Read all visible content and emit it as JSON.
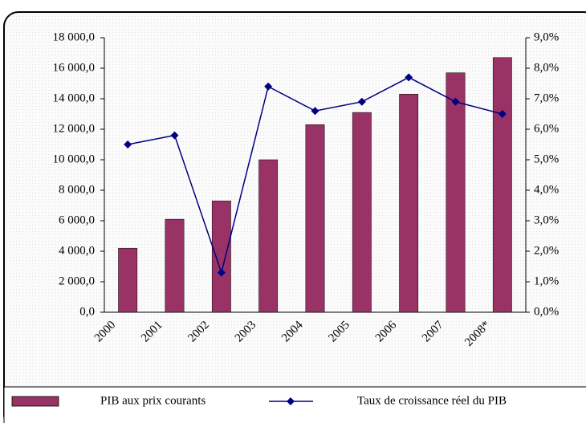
{
  "chart_data": {
    "type": "bar-line",
    "categories": [
      "2000",
      "2001",
      "2002",
      "2003",
      "2004",
      "2005",
      "2006",
      "2007",
      "2008*"
    ],
    "series": [
      {
        "name": "PIB aux prix courants",
        "type": "bar",
        "color": "#993366",
        "values": [
          4200,
          6100,
          7300,
          10000,
          12300,
          13100,
          14300,
          15700,
          16700
        ]
      },
      {
        "name": "Taux de croissance réel du PIB",
        "type": "line",
        "axis": "y2",
        "color": "#000080",
        "values": [
          5.5,
          5.8,
          1.3,
          7.4,
          6.6,
          6.9,
          7.7,
          6.9,
          6.5
        ]
      }
    ],
    "ylim": [
      0,
      18000
    ],
    "yticks": [
      {
        "value": 0,
        "label": "0,0"
      },
      {
        "value": 2000,
        "label": "2 000,0"
      },
      {
        "value": 4000,
        "label": "4 000,0"
      },
      {
        "value": 6000,
        "label": "6 000,0"
      },
      {
        "value": 8000,
        "label": "8 000,0"
      },
      {
        "value": 10000,
        "label": "10 000,0"
      },
      {
        "value": 12000,
        "label": "12 000,0"
      },
      {
        "value": 14000,
        "label": "14 000,0"
      },
      {
        "value": 16000,
        "label": "16 000,0"
      },
      {
        "value": 18000,
        "label": "18 000,0"
      }
    ],
    "y2lim": [
      0,
      9
    ],
    "y2ticks": [
      {
        "value": 0,
        "label": "0,0%"
      },
      {
        "value": 1,
        "label": "1,0%"
      },
      {
        "value": 2,
        "label": "2,0%"
      },
      {
        "value": 3,
        "label": "3,0%"
      },
      {
        "value": 4,
        "label": "4,0%"
      },
      {
        "value": 5,
        "label": "5,0%"
      },
      {
        "value": 6,
        "label": "6,0%"
      },
      {
        "value": 7,
        "label": "7,0%"
      },
      {
        "value": 8,
        "label": "8,0%"
      },
      {
        "value": 9,
        "label": "9,0%"
      }
    ],
    "legend": "bottom"
  }
}
